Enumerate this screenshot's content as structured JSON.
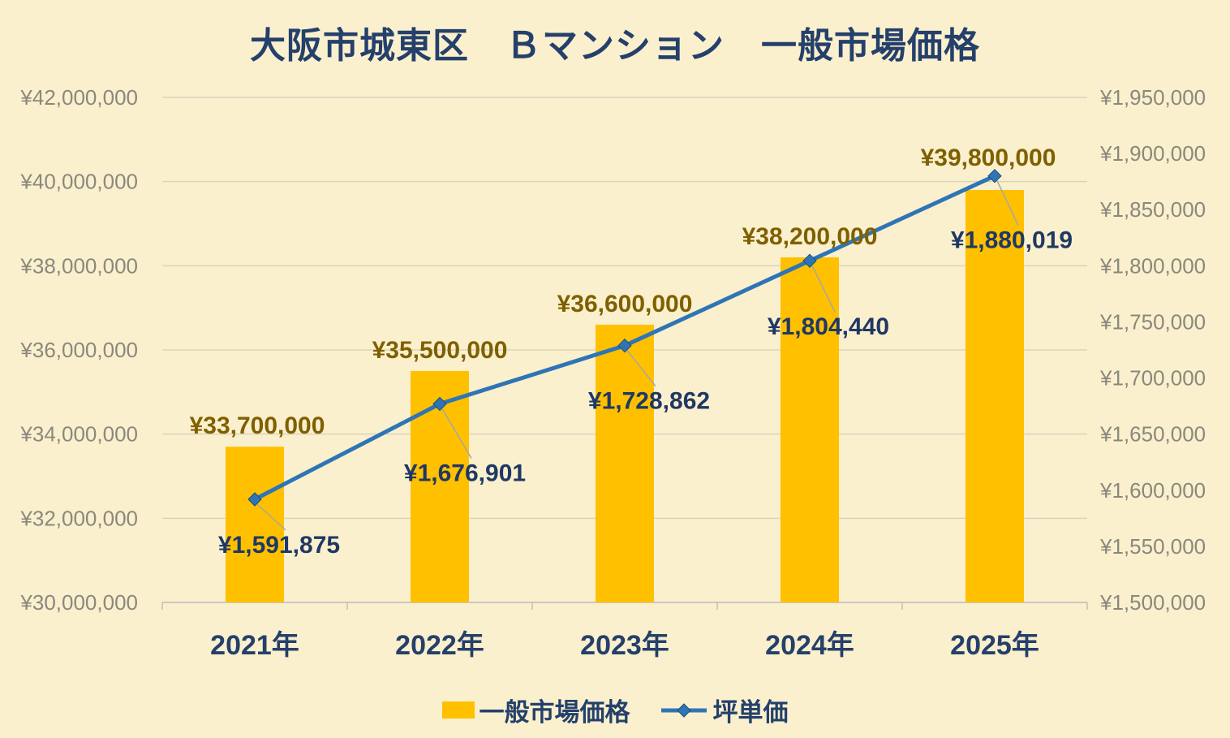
{
  "chart_data": {
    "type": "combo-bar-line",
    "title": "大阪市城東区　Ｂマンション　一般市場価格",
    "categories": [
      "2021年",
      "2022年",
      "2023年",
      "2024年",
      "2025年"
    ],
    "series": [
      {
        "name": "一般市場価格",
        "type": "bar",
        "axis": "left",
        "color": "#FFC000",
        "values": [
          33700000,
          35500000,
          36600000,
          38200000,
          39800000
        ],
        "data_labels": [
          "¥33,700,000",
          "¥35,500,000",
          "¥36,600,000",
          "¥38,200,000",
          "¥39,800,000"
        ]
      },
      {
        "name": "坪単価",
        "type": "line",
        "axis": "right",
        "color": "#2E75B6",
        "values": [
          1591875,
          1676901,
          1728862,
          1804440,
          1880019
        ],
        "data_labels": [
          "¥1,591,875",
          "¥1,676,901",
          "¥1,728,862",
          "¥1,804,440",
          "¥1,880,019"
        ]
      }
    ],
    "left_axis": {
      "min": 30000000,
      "max": 42000000,
      "step": 2000000,
      "tick_labels": [
        "¥30,000,000",
        "¥32,000,000",
        "¥34,000,000",
        "¥36,000,000",
        "¥38,000,000",
        "¥40,000,000",
        "¥42,000,000"
      ]
    },
    "right_axis": {
      "min": 1500000,
      "max": 1950000,
      "step": 50000,
      "tick_labels": [
        "¥1,500,000",
        "¥1,550,000",
        "¥1,600,000",
        "¥1,650,000",
        "¥1,700,000",
        "¥1,750,000",
        "¥1,800,000",
        "¥1,850,000",
        "¥1,900,000",
        "¥1,950,000"
      ]
    },
    "layout_hints": {
      "grid": true,
      "legend_position": "bottom",
      "data_labels_visible": true
    },
    "colors": {
      "background": "#FBF0CD",
      "bar": "#FFC000",
      "line": "#2E75B6",
      "marker_stroke": "#1F4E79",
      "bar_label": "#7F6000",
      "line_label": "#1F3864",
      "axis_label": "#8A887E",
      "category_label": "#24406B",
      "title": "#24406B",
      "gridline": "#DBD3BE",
      "axis_line": "#BFBFBF",
      "leader_line": "#A6A6A6"
    }
  }
}
